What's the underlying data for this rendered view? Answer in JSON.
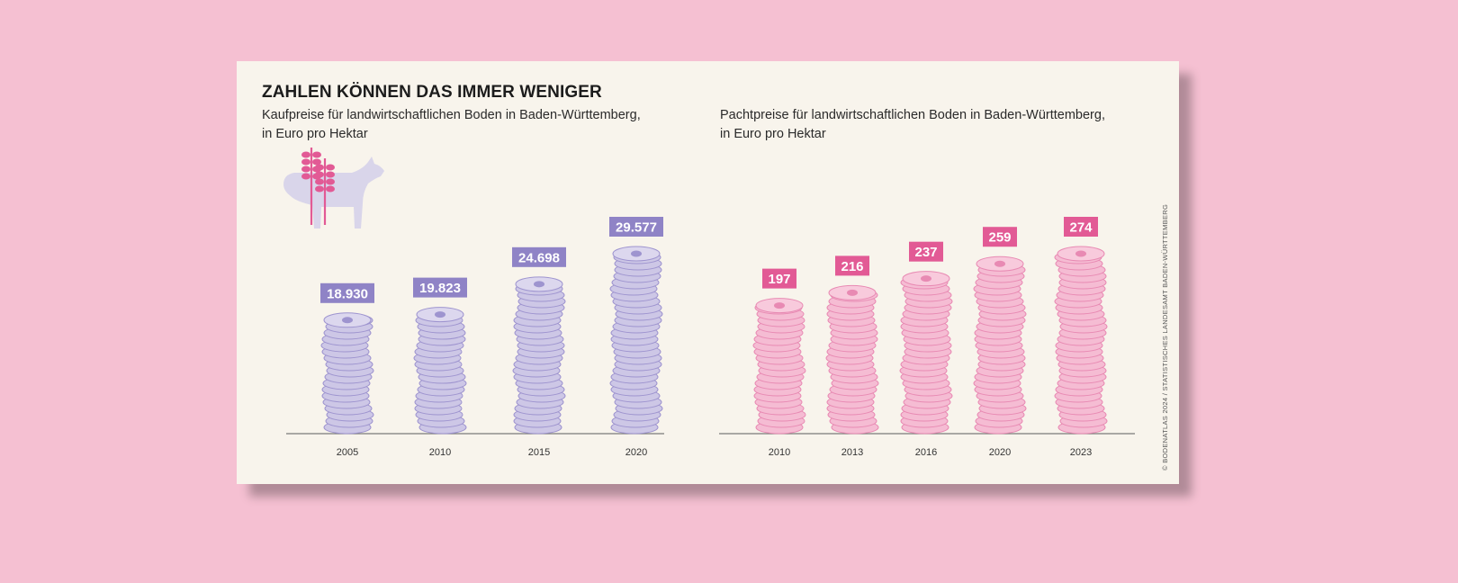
{
  "title": "ZAHLEN KÖNNEN DAS IMMER WENIGER",
  "credit": "© BODENATLAS 2024 / STATISTISCHES LANDESAMT BADEN-WÜRTTEMBERG",
  "colors": {
    "purple": "#8f83c6",
    "purple_coin": "#cdc7e6",
    "pink": "#e25a95",
    "pink_coin": "#f5bcd3"
  },
  "icons": {
    "cow": "cow-with-wheat-icon",
    "coin": "euro-coin-icon"
  },
  "chart_data": [
    {
      "type": "bar",
      "title": "Kaufpreise für landwirtschaftlichen Boden in Baden-Württemberg,",
      "subtitle": "in Euro pro Hektar",
      "categories": [
        "2005",
        "2010",
        "2015",
        "2020"
      ],
      "values": [
        18930,
        19823,
        24698,
        29577
      ],
      "labels": [
        "18.930",
        "19.823",
        "24.698",
        "29.577"
      ],
      "ylabel": "Euro pro Hektar",
      "ylim": [
        0,
        29577
      ]
    },
    {
      "type": "bar",
      "title": "Pachtpreise für landwirtschaftlichen Boden in Baden-Württemberg,",
      "subtitle": "in Euro pro Hektar",
      "categories": [
        "2010",
        "2013",
        "2016",
        "2020",
        "2023"
      ],
      "values": [
        197,
        216,
        237,
        259,
        274
      ],
      "labels": [
        "197",
        "216",
        "237",
        "259",
        "274"
      ],
      "ylabel": "Euro pro Hektar",
      "ylim": [
        0,
        274
      ]
    }
  ]
}
